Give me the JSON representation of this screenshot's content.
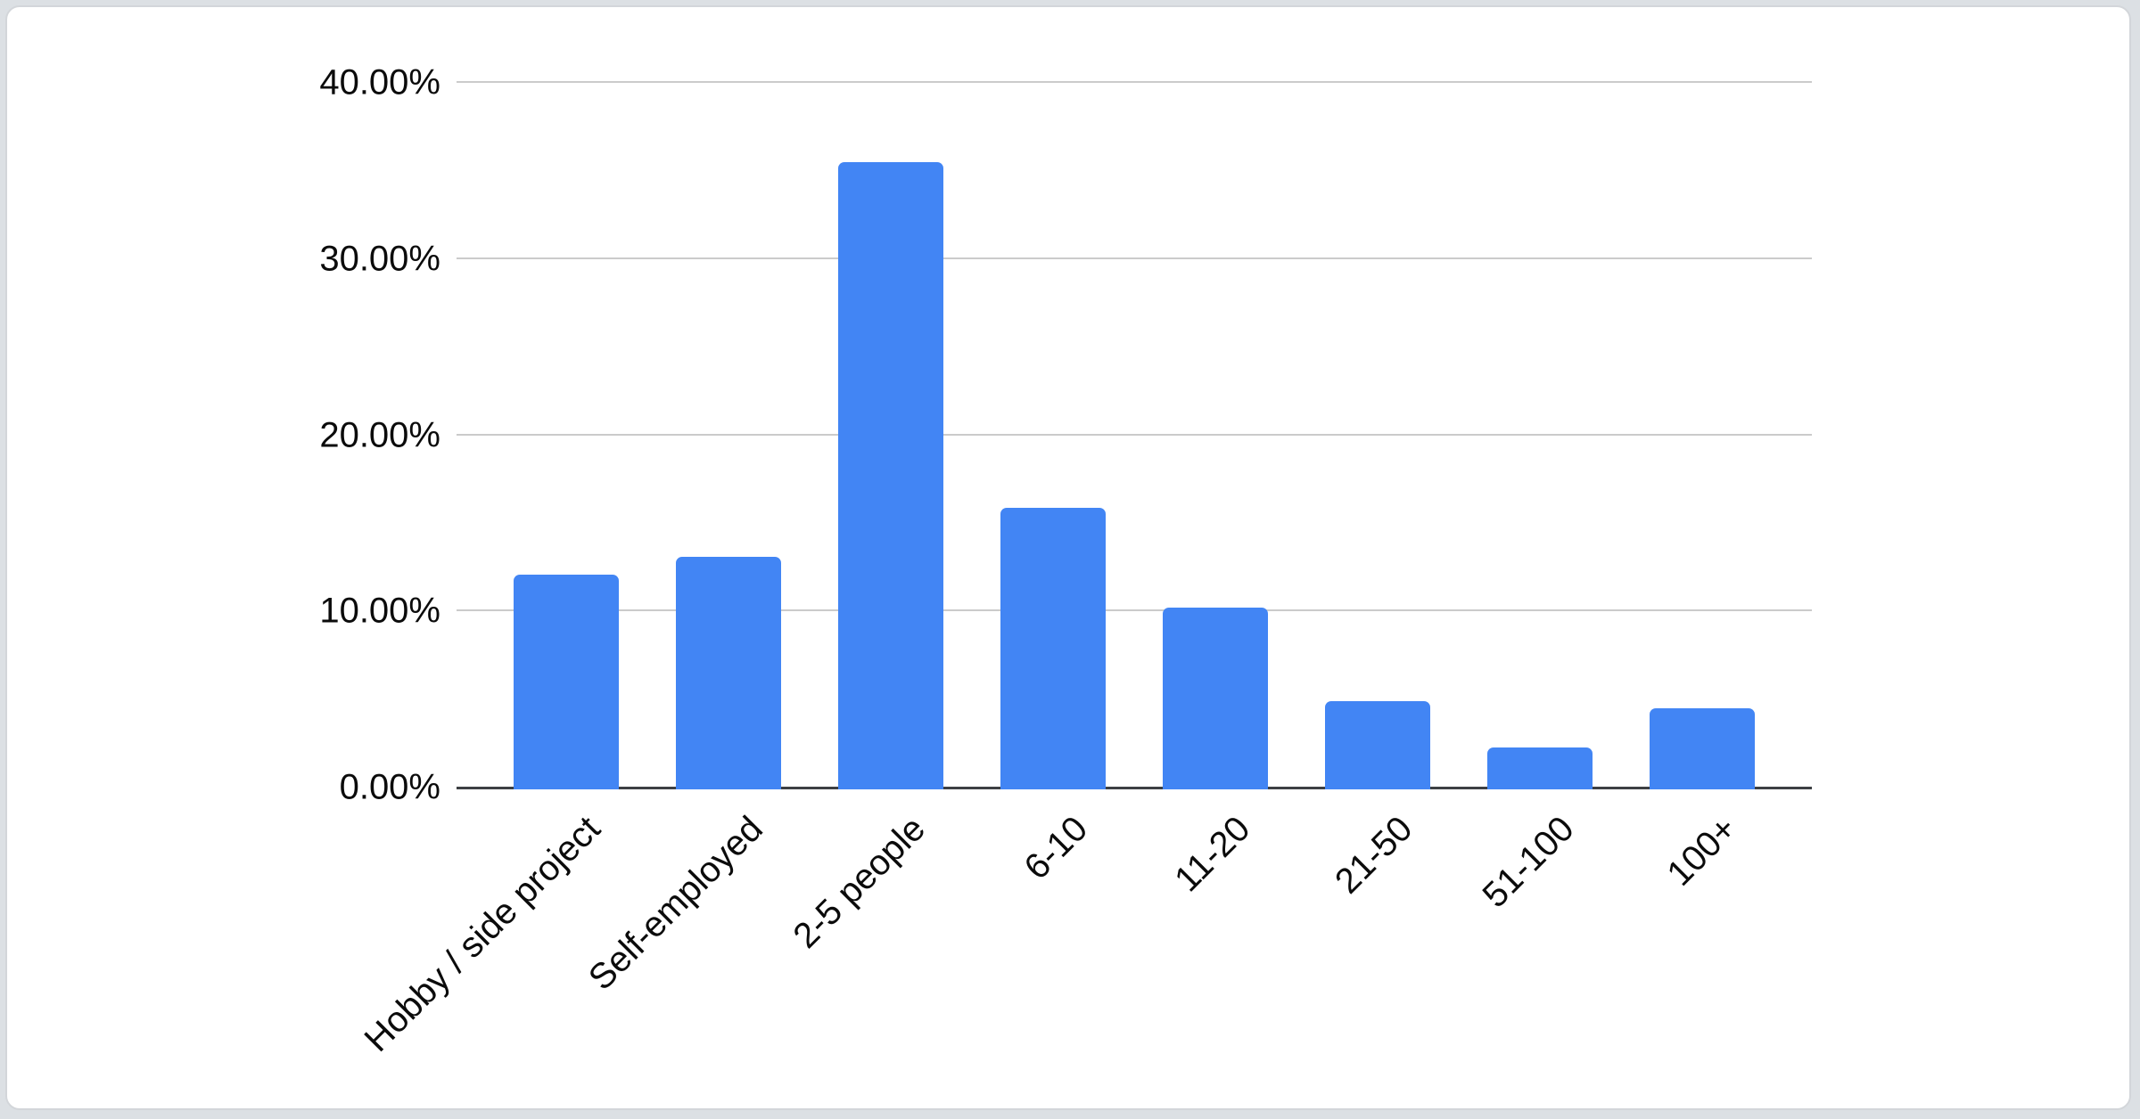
{
  "page": {
    "background_color": "#dce0e4",
    "card_background_color": "#ffffff",
    "card_border_color": "#d3d6da"
  },
  "chart_data": {
    "type": "bar",
    "title": "",
    "xlabel": "",
    "ylabel": "",
    "categories": [
      "Hobby / side project",
      "Self-employed",
      "2-5 people",
      "6-10",
      "11-20",
      "21-50",
      "51-100",
      "100+"
    ],
    "values": [
      12.2,
      13.2,
      35.6,
      16.0,
      10.3,
      5.0,
      2.4,
      4.6
    ],
    "value_unit": "%",
    "series_name": "",
    "y_ticks": [
      {
        "value": 40,
        "label": "40.00%"
      },
      {
        "value": 30,
        "label": "30.00%"
      },
      {
        "value": 20,
        "label": "20.00%"
      },
      {
        "value": 10,
        "label": "10.00%"
      },
      {
        "value": 0,
        "label": "0.00%"
      }
    ],
    "ylim": [
      0,
      40
    ],
    "grid": true,
    "legend_position": "none",
    "x_label_rotation_degrees": -45,
    "bar_color": "#4285f4",
    "gridline_color": "#cbcbcb",
    "axis_line_color": "#3d4043",
    "tick_label_color": "#0b0b0b"
  }
}
